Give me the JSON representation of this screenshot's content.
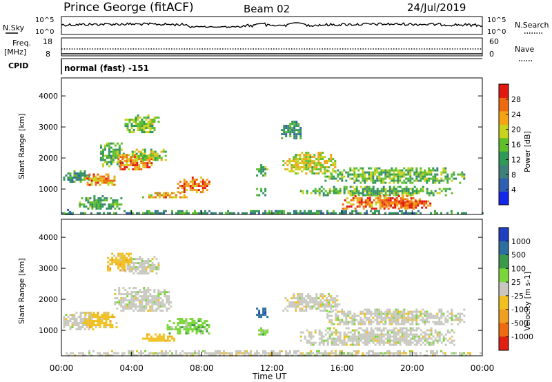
{
  "header": {
    "station": "Prince George (fitACF)",
    "beam": "Beam 02",
    "date": "24/Jul/2019"
  },
  "status_panel": {
    "nsky_label": "N.Sky",
    "nsky_ticks": [
      "10^5",
      "10^0"
    ],
    "nsearch_label": "N.Search",
    "nsearch_ticks": [
      "10^5",
      "10^0"
    ],
    "freq_label": "Freq.",
    "freq_unit": "[MHz]",
    "freq_ticks": [
      "18",
      "8"
    ],
    "nave_label": "Nave",
    "nave_ticks": [
      "60",
      "0"
    ],
    "cpid_label": "CPID",
    "cpid_value": "normal (fast) -151"
  },
  "chart_data": [
    {
      "type": "heatmap",
      "name": "power-panel",
      "ylabel": "Slant Range [km]",
      "ylim": [
        180,
        4580
      ],
      "yticks": [
        1000,
        2000,
        3000,
        4000
      ],
      "xlim": [
        0,
        24
      ],
      "colorbar": {
        "label": "Power [dB]",
        "range": [
          0,
          32
        ],
        "ticks": [
          "4",
          "8",
          "12",
          "16",
          "20",
          "24",
          "28"
        ],
        "colors": [
          "#1426e8",
          "#2f5fb0",
          "#3f7f7a",
          "#2f9a55",
          "#5fbf2a",
          "#c9d21c",
          "#f3a313",
          "#ee6a10",
          "#e01a10"
        ]
      },
      "regions": [
        {
          "t": [
            0.2,
            0.6
          ],
          "r": [
            180,
            360
          ],
          "level": 0.3
        },
        {
          "t": [
            0.0,
            24.0
          ],
          "r": [
            200,
            320
          ],
          "level": 0.35
        },
        {
          "t": [
            0.1,
            1.6
          ],
          "r": [
            1200,
            1600
          ],
          "level": 0.35
        },
        {
          "t": [
            1.2,
            3.0
          ],
          "r": [
            1100,
            1500
          ],
          "level": 0.75
        },
        {
          "t": [
            2.2,
            3.6
          ],
          "r": [
            1700,
            2500
          ],
          "level": 0.45
        },
        {
          "t": [
            3.2,
            5.2
          ],
          "r": [
            1600,
            2200
          ],
          "level": 0.78
        },
        {
          "t": [
            4.0,
            6.0
          ],
          "r": [
            1900,
            2300
          ],
          "level": 0.55
        },
        {
          "t": [
            3.6,
            5.6
          ],
          "r": [
            2800,
            3400
          ],
          "level": 0.5
        },
        {
          "t": [
            4.6,
            7.4
          ],
          "r": [
            700,
            900
          ],
          "level": 0.72
        },
        {
          "t": [
            6.6,
            8.4
          ],
          "r": [
            900,
            1400
          ],
          "level": 0.8
        },
        {
          "t": [
            1.0,
            3.4
          ],
          "r": [
            350,
            800
          ],
          "level": 0.4
        },
        {
          "t": [
            11.1,
            11.7
          ],
          "r": [
            1400,
            1800
          ],
          "level": 0.45
        },
        {
          "t": [
            11.1,
            11.7
          ],
          "r": [
            800,
            1100
          ],
          "level": 0.45
        },
        {
          "t": [
            12.6,
            15.6
          ],
          "r": [
            1500,
            2200
          ],
          "level": 0.6
        },
        {
          "t": [
            15.0,
            23.0
          ],
          "r": [
            1200,
            1700
          ],
          "level": 0.48
        },
        {
          "t": [
            13.6,
            22.4
          ],
          "r": [
            800,
            1100
          ],
          "level": 0.45
        },
        {
          "t": [
            16.0,
            20.4
          ],
          "r": [
            350,
            800
          ],
          "level": 0.8
        },
        {
          "t": [
            18.5,
            21.0
          ],
          "r": [
            400,
            700
          ],
          "level": 0.85
        },
        {
          "t": [
            12.4,
            13.6
          ],
          "r": [
            2600,
            3200
          ],
          "level": 0.35
        }
      ]
    },
    {
      "type": "heatmap",
      "name": "velocity-panel",
      "ylabel": "Slant Range [km]",
      "xlabel": "Time UT",
      "ylim": [
        180,
        4580
      ],
      "yticks": [
        1000,
        2000,
        3000,
        4000
      ],
      "xlim": [
        0,
        24
      ],
      "xticks": [
        "00:00",
        "04:00",
        "08:00",
        "12:00",
        "16:00",
        "20:00",
        "00:00"
      ],
      "colorbar": {
        "label": "Velocity [m s-1]",
        "ticks": [
          "1000",
          "500",
          "100",
          "25",
          "-25",
          "-100",
          "-500",
          "-1000"
        ],
        "colors": [
          "#1f3fbf",
          "#2e6e9e",
          "#3a9a4a",
          "#7ad63a",
          "#c8c8c0",
          "#f0c020",
          "#f0a020",
          "#ee6a10",
          "#e02010"
        ]
      },
      "regions": [
        {
          "t": [
            0.0,
            24.0
          ],
          "r": [
            200,
            360
          ],
          "cls": 4
        },
        {
          "t": [
            0.1,
            1.8
          ],
          "r": [
            1000,
            1600
          ],
          "cls": 4
        },
        {
          "t": [
            1.2,
            3.2
          ],
          "r": [
            1100,
            1600
          ],
          "cls": 5
        },
        {
          "t": [
            3.0,
            6.2
          ],
          "r": [
            1600,
            2400
          ],
          "cls": 4
        },
        {
          "t": [
            3.6,
            5.6
          ],
          "r": [
            2800,
            3400
          ],
          "cls": 4
        },
        {
          "t": [
            4.6,
            6.4
          ],
          "r": [
            650,
            900
          ],
          "cls": 5
        },
        {
          "t": [
            6.0,
            8.4
          ],
          "r": [
            900,
            1400
          ],
          "cls": 3
        },
        {
          "t": [
            11.1,
            11.7
          ],
          "r": [
            1400,
            1800
          ],
          "cls": 1
        },
        {
          "t": [
            11.1,
            11.7
          ],
          "r": [
            850,
            1100
          ],
          "cls": 3
        },
        {
          "t": [
            12.6,
            15.8
          ],
          "r": [
            1600,
            2200
          ],
          "cls": 4
        },
        {
          "t": [
            15.0,
            23.0
          ],
          "r": [
            1200,
            1700
          ],
          "cls": 4
        },
        {
          "t": [
            13.6,
            22.4
          ],
          "r": [
            500,
            1100
          ],
          "cls": 4
        },
        {
          "t": [
            2.6,
            4.0
          ],
          "r": [
            2900,
            3500
          ],
          "cls": 5
        }
      ]
    }
  ]
}
